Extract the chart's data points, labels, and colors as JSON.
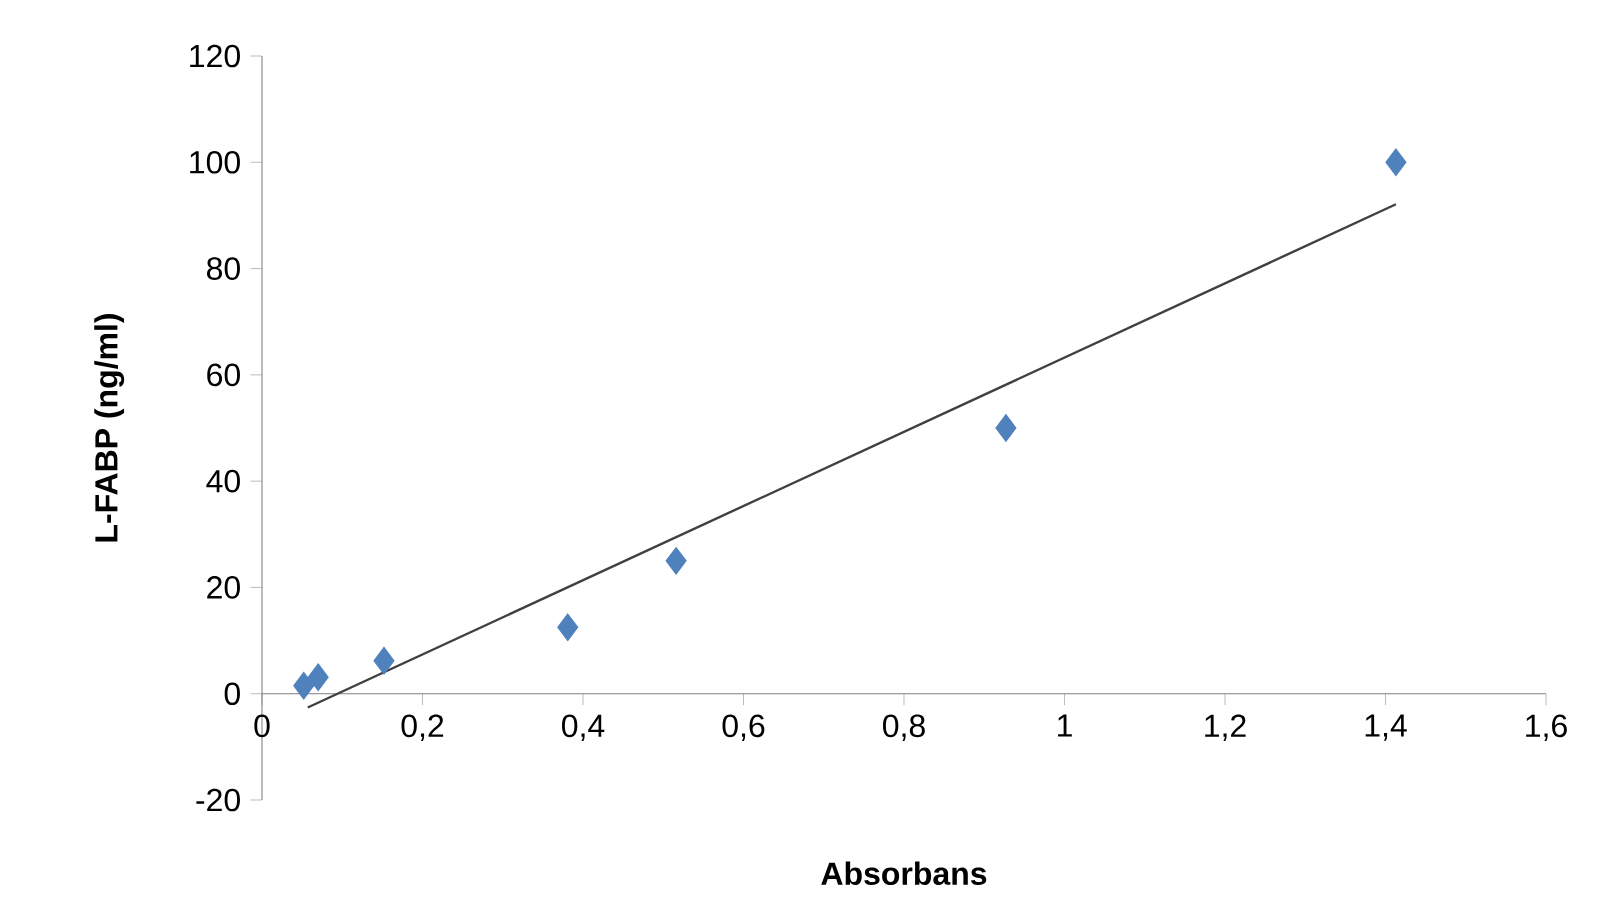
{
  "chart_data": {
    "type": "scatter",
    "xlabel": "Absorbans",
    "ylabel": "L-FABP (ng/ml)",
    "xlim": [
      0,
      1.6
    ],
    "ylim": [
      -20,
      120
    ],
    "xticks": [
      0,
      {
        "value": 0.2,
        "label": "0,2"
      },
      {
        "value": 0.4,
        "label": "0,4"
      },
      {
        "value": 0.6,
        "label": "0,6"
      },
      {
        "value": 0.8,
        "label": "0,8"
      },
      1,
      {
        "value": 1.2,
        "label": "1,2"
      },
      {
        "value": 1.4,
        "label": "1,4"
      },
      {
        "value": 1.6,
        "label": "1,6"
      }
    ],
    "yticks": [
      -20,
      0,
      20,
      40,
      60,
      80,
      100,
      120
    ],
    "marker": "diamond",
    "grid": false,
    "series": [
      {
        "color": "#4f81bd",
        "x": [
          0.052,
          0.07,
          0.152,
          0.381,
          0.516,
          0.927,
          1.413
        ],
        "values": [
          1.5,
          3.1,
          6.2,
          12.5,
          25,
          50,
          100
        ]
      },
      {
        "type": "line",
        "color": "#404040",
        "marker": "none",
        "x": [
          0.057,
          1.413
        ],
        "values": [
          -2.6,
          92.1
        ]
      }
    ]
  }
}
